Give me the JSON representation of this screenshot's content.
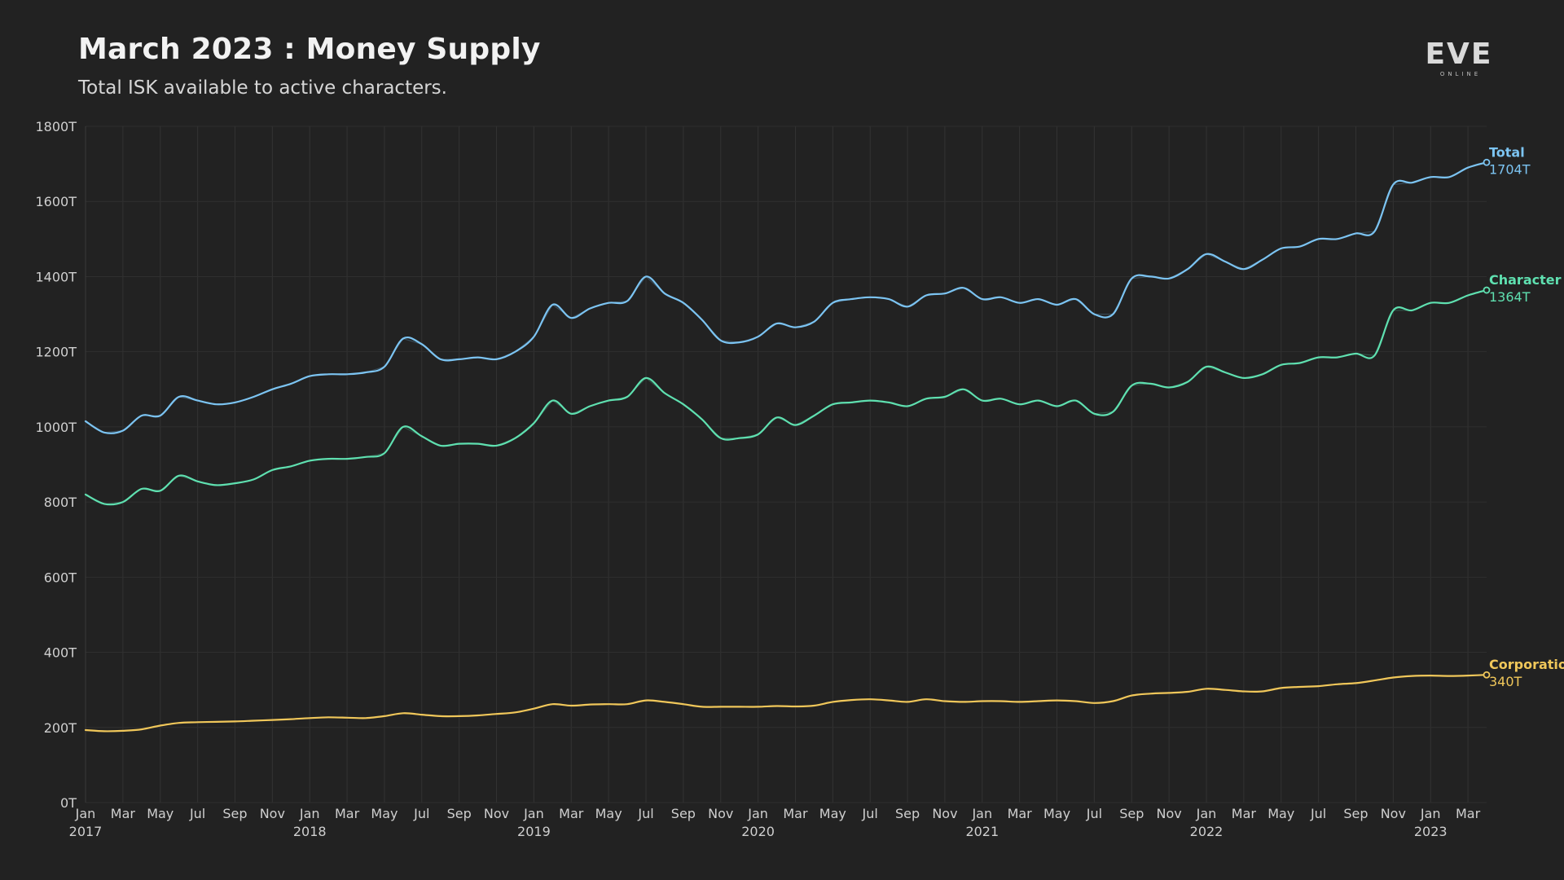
{
  "header": {
    "title": "March 2023 : Money Supply",
    "subtitle": "Total ISK available to active characters.",
    "logo_text": "EVE",
    "logo_subtext": "ONLINE"
  },
  "colors": {
    "background": "#222222",
    "total": "#7cc4f2",
    "character": "#5fe0b0",
    "corporation": "#f0c75a",
    "grid": "#333333"
  },
  "chart_data": {
    "type": "line",
    "title": "March 2023 : Money Supply",
    "subtitle": "Total ISK available to active characters.",
    "xlabel": "",
    "ylabel": "",
    "ylim": [
      0,
      1800
    ],
    "yunit": "T",
    "y_ticks": [
      "0T",
      "200T",
      "400T",
      "600T",
      "800T",
      "1000T",
      "1200T",
      "1400T",
      "1600T",
      "1800T"
    ],
    "x_range": [
      "2017-01",
      "2023-04"
    ],
    "x_tick_months": [
      "Jan",
      "Mar",
      "May",
      "Jul",
      "Sep",
      "Nov",
      "Jan",
      "Mar",
      "May",
      "Jul",
      "Sep",
      "Nov",
      "Jan",
      "Mar",
      "May",
      "Jul",
      "Sep",
      "Nov",
      "Jan",
      "Mar",
      "May",
      "Jul",
      "Sep",
      "Nov",
      "Jan",
      "Mar",
      "May",
      "Jul",
      "Sep",
      "Nov",
      "Jan",
      "Mar",
      "May",
      "Jul",
      "Sep",
      "Nov",
      "Jan",
      "Mar"
    ],
    "x_tick_years": [
      {
        "label": "2017",
        "date": "2017-01"
      },
      {
        "label": "2018",
        "date": "2018-01"
      },
      {
        "label": "2019",
        "date": "2019-01"
      },
      {
        "label": "2020",
        "date": "2020-01"
      },
      {
        "label": "2021",
        "date": "2021-01"
      },
      {
        "label": "2022",
        "date": "2022-01"
      },
      {
        "label": "2023",
        "date": "2023-01"
      }
    ],
    "grid": true,
    "legend": "end-of-line labels",
    "x": [
      "2017-01",
      "2017-02",
      "2017-03",
      "2017-04",
      "2017-05",
      "2017-06",
      "2017-07",
      "2017-08",
      "2017-09",
      "2017-10",
      "2017-11",
      "2017-12",
      "2018-01",
      "2018-02",
      "2018-03",
      "2018-04",
      "2018-05",
      "2018-06",
      "2018-07",
      "2018-08",
      "2018-09",
      "2018-10",
      "2018-11",
      "2018-12",
      "2019-01",
      "2019-02",
      "2019-03",
      "2019-04",
      "2019-05",
      "2019-06",
      "2019-07",
      "2019-08",
      "2019-09",
      "2019-10",
      "2019-11",
      "2019-12",
      "2020-01",
      "2020-02",
      "2020-03",
      "2020-04",
      "2020-05",
      "2020-06",
      "2020-07",
      "2020-08",
      "2020-09",
      "2020-10",
      "2020-11",
      "2020-12",
      "2021-01",
      "2021-02",
      "2021-03",
      "2021-04",
      "2021-05",
      "2021-06",
      "2021-07",
      "2021-08",
      "2021-09",
      "2021-10",
      "2021-11",
      "2021-12",
      "2022-01",
      "2022-02",
      "2022-03",
      "2022-04",
      "2022-05",
      "2022-06",
      "2022-07",
      "2022-08",
      "2022-09",
      "2022-10",
      "2022-11",
      "2022-12",
      "2023-01",
      "2023-02",
      "2023-03",
      "2023-04"
    ],
    "series": [
      {
        "name": "Total",
        "end_label": "1704T",
        "color": "#7cc4f2",
        "values": [
          1015,
          985,
          990,
          1030,
          1030,
          1080,
          1070,
          1060,
          1065,
          1080,
          1100,
          1115,
          1135,
          1140,
          1140,
          1145,
          1160,
          1235,
          1220,
          1180,
          1180,
          1185,
          1180,
          1200,
          1240,
          1325,
          1290,
          1315,
          1330,
          1335,
          1400,
          1355,
          1330,
          1285,
          1230,
          1225,
          1240,
          1275,
          1265,
          1280,
          1330,
          1340,
          1345,
          1340,
          1320,
          1350,
          1355,
          1370,
          1340,
          1345,
          1330,
          1340,
          1325,
          1340,
          1300,
          1300,
          1395,
          1400,
          1395,
          1420,
          1460,
          1440,
          1420,
          1445,
          1475,
          1480,
          1500,
          1500,
          1515,
          1520,
          1645,
          1650,
          1665,
          1665,
          1690,
          1704
        ]
      },
      {
        "name": "Character",
        "end_label": "1364T",
        "color": "#5fe0b0",
        "values": [
          820,
          795,
          800,
          835,
          830,
          870,
          855,
          845,
          850,
          860,
          885,
          895,
          910,
          915,
          915,
          920,
          930,
          1000,
          975,
          950,
          955,
          955,
          950,
          970,
          1010,
          1070,
          1035,
          1055,
          1070,
          1080,
          1130,
          1090,
          1060,
          1020,
          970,
          970,
          980,
          1025,
          1005,
          1030,
          1060,
          1065,
          1070,
          1065,
          1055,
          1075,
          1080,
          1100,
          1070,
          1075,
          1060,
          1070,
          1055,
          1070,
          1035,
          1040,
          1110,
          1115,
          1105,
          1120,
          1160,
          1145,
          1130,
          1140,
          1165,
          1170,
          1185,
          1185,
          1195,
          1190,
          1310,
          1310,
          1330,
          1330,
          1350,
          1364
        ]
      },
      {
        "name": "Corporation",
        "end_label": "340T",
        "color": "#f0c75a",
        "values": [
          193,
          190,
          191,
          195,
          205,
          212,
          214,
          215,
          216,
          218,
          220,
          222,
          225,
          227,
          226,
          225,
          230,
          238,
          234,
          230,
          230,
          232,
          236,
          240,
          250,
          262,
          258,
          261,
          262,
          262,
          272,
          268,
          262,
          255,
          255,
          255,
          255,
          257,
          256,
          258,
          268,
          273,
          275,
          272,
          268,
          275,
          270,
          268,
          270,
          270,
          268,
          270,
          272,
          270,
          265,
          270,
          285,
          290,
          292,
          295,
          303,
          300,
          296,
          296,
          305,
          308,
          310,
          315,
          318,
          325,
          333,
          337,
          338,
          337,
          338,
          340
        ]
      }
    ]
  }
}
